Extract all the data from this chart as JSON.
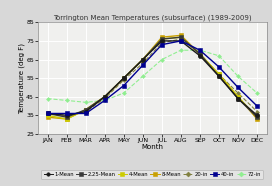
{
  "title": "Torrington Mean Temperatures (subsurface) (1989-2009)",
  "xlabel": "Month",
  "ylabel": "Temperature (deg F)",
  "months": [
    "JAN",
    "FEB",
    "MAR",
    "APR",
    "MAY",
    "JUN",
    "JUL",
    "AUG",
    "SEP",
    "OCT",
    "NOV",
    "DEC"
  ],
  "ylim": [
    25,
    85
  ],
  "yticks": [
    25,
    35,
    45,
    55,
    65,
    75,
    85
  ],
  "months_data": {
    "1-Mean": [
      36,
      35,
      37,
      45,
      55,
      65,
      75,
      75,
      67,
      56,
      44,
      35
    ],
    "2.25-Mean": [
      36,
      34,
      38,
      45,
      55,
      65,
      76,
      77,
      68,
      56,
      44,
      34
    ],
    "4-Mean": [
      35,
      33,
      38,
      45,
      55,
      65,
      76,
      77,
      68,
      57,
      45,
      34
    ],
    "8-Mean": [
      34,
      33,
      38,
      45,
      55,
      65,
      77,
      78,
      68,
      57,
      45,
      33
    ],
    "20-in": [
      36,
      35,
      37,
      44,
      54,
      63,
      74,
      76,
      68,
      57,
      47,
      37
    ],
    "40-in": [
      36,
      36,
      36,
      43,
      51,
      62,
      73,
      75,
      70,
      61,
      50,
      40
    ],
    "72-in": [
      44,
      43,
      42,
      43,
      47,
      56,
      65,
      70,
      70,
      67,
      56,
      47
    ]
  },
  "series_styles": {
    "1-Mean": {
      "color": "#1a1a1a",
      "marker": "o",
      "lw": 1.0,
      "ls": "-",
      "ms": 3.0,
      "mfc": "#1a1a1a"
    },
    "2.25-Mean": {
      "color": "#3a3a3a",
      "marker": "s",
      "lw": 1.0,
      "ls": "-",
      "ms": 2.5,
      "mfc": "#3a3a3a"
    },
    "4-Mean": {
      "color": "#cccc00",
      "marker": "s",
      "lw": 1.0,
      "ls": "-",
      "ms": 2.5,
      "mfc": "#cccc00"
    },
    "8-Mean": {
      "color": "#c8a000",
      "marker": "s",
      "lw": 1.0,
      "ls": "-",
      "ms": 2.5,
      "mfc": "#c8a000"
    },
    "20-in": {
      "color": "#808040",
      "marker": "D",
      "lw": 0.8,
      "ls": "--",
      "ms": 2.0,
      "mfc": "#808040"
    },
    "40-in": {
      "color": "#000090",
      "marker": "s",
      "lw": 1.0,
      "ls": "-",
      "ms": 3.5,
      "mfc": "#000090"
    },
    "72-in": {
      "color": "#90ee90",
      "marker": "D",
      "lw": 0.8,
      "ls": "--",
      "ms": 2.0,
      "mfc": "#90ee90"
    }
  },
  "fig_bg": "#d8d8d8",
  "ax_bg": "#f0f0ee",
  "grid_color": "#ffffff",
  "spine_color": "#888888",
  "title_fontsize": 5.0,
  "label_fontsize": 5.0,
  "tick_fontsize": 4.5,
  "legend_fontsize": 3.8
}
